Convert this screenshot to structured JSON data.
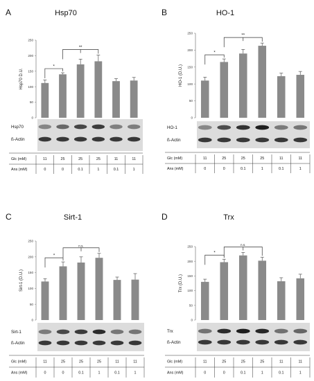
{
  "colors": {
    "bar": "#8a8a8a",
    "axis": "#888888",
    "text": "#222222"
  },
  "table_rows": [
    {
      "label": "Glc (mM)",
      "values": [
        "11",
        "25",
        "25",
        "25",
        "11",
        "11"
      ]
    },
    {
      "label": "Ans (mM)",
      "values": [
        "0",
        "0",
        "0.1",
        "1",
        "0.1",
        "1"
      ]
    }
  ],
  "chart_data": [
    {
      "letter": "A",
      "title": "Hsp70",
      "type": "bar",
      "ylabel": "Hsp70 D.U.",
      "ylim": [
        0,
        250
      ],
      "yticks": [
        "0",
        "50",
        "100",
        "150",
        "200",
        "250"
      ],
      "values": [
        112,
        140,
        172,
        182,
        118,
        120
      ],
      "errors": [
        10,
        5,
        17,
        20,
        8,
        10
      ],
      "significance": [
        {
          "from": 0,
          "to": 1,
          "label": "*"
        },
        {
          "from": 1,
          "to": 3,
          "label": "**"
        }
      ],
      "blot_labels": [
        "Hsp70",
        "ß-Actin"
      ]
    },
    {
      "letter": "B",
      "title": "HO-1",
      "type": "bar",
      "ylabel": "HO-1 (D.U.)",
      "ylim": [
        0,
        250
      ],
      "yticks": [
        "0",
        "50",
        "100",
        "150",
        "200",
        "250"
      ],
      "values": [
        110,
        165,
        190,
        213,
        123,
        127
      ],
      "errors": [
        10,
        9,
        12,
        8,
        9,
        10
      ],
      "significance": [
        {
          "from": 0,
          "to": 1,
          "label": "*"
        },
        {
          "from": 1,
          "to": 3,
          "label": "**"
        }
      ],
      "blot_labels": [
        "HO-1",
        "ß-Actin"
      ]
    },
    {
      "letter": "C",
      "title": "Sirt-1",
      "type": "bar",
      "ylabel": "Sirt-1 (D.U.)",
      "ylim": [
        0,
        250
      ],
      "yticks": [
        "0",
        "50",
        "100",
        "150",
        "200",
        "250"
      ],
      "values": [
        122,
        170,
        182,
        197,
        127,
        128
      ],
      "errors": [
        9,
        14,
        18,
        14,
        9,
        19
      ],
      "significance": [
        {
          "from": 0,
          "to": 1,
          "label": "*"
        },
        {
          "from": 1,
          "to": 3,
          "label": "n.s."
        }
      ],
      "blot_labels": [
        "Sirt-1",
        "ß-Actin"
      ]
    },
    {
      "letter": "D",
      "title": "Trx",
      "type": "bar",
      "ylabel": "Trx (D.U.)",
      "ylim": [
        0,
        250
      ],
      "yticks": [
        "0",
        "50",
        "100",
        "150",
        "200",
        "250"
      ],
      "values": [
        130,
        197,
        220,
        202,
        132,
        142
      ],
      "errors": [
        9,
        10,
        10,
        12,
        12,
        14
      ],
      "significance": [
        {
          "from": 0,
          "to": 1,
          "label": "*"
        },
        {
          "from": 1,
          "to": 3,
          "label": "n.s."
        }
      ],
      "blot_labels": [
        "Trx",
        "ß-Actin"
      ]
    }
  ]
}
